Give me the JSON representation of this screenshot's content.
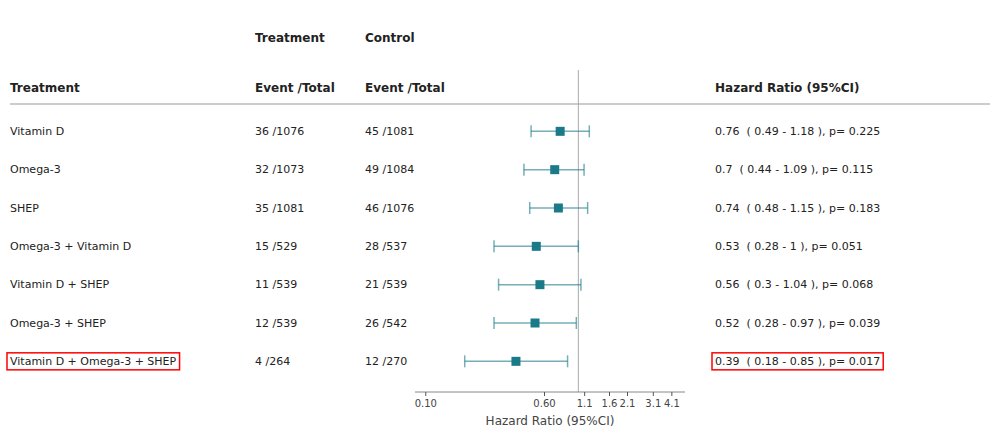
{
  "chart_data": {
    "type": "forest",
    "categories": [
      "Vitamin D",
      "Omega-3",
      "SHEP",
      "Omega-3 + Vitamin D",
      "Vitamin D + SHEP",
      "Omega-3 + SHEP",
      "Vitamin D + Omega-3 + SHEP"
    ],
    "values": [
      0.76,
      0.7,
      0.74,
      0.53,
      0.56,
      0.52,
      0.39
    ],
    "ci_low": [
      0.49,
      0.44,
      0.48,
      0.28,
      0.3,
      0.28,
      0.18
    ],
    "ci_high": [
      1.18,
      1.09,
      1.15,
      1.0,
      1.04,
      0.97,
      0.85
    ],
    "treat_events": [
      "36 /1076",
      "32 /1073",
      "35 /1081",
      "15 /529",
      "11 /539",
      "12 /539",
      "4 /264"
    ],
    "control_events": [
      "45 /1081",
      "49 /1084",
      "46 /1076",
      "28 /537",
      "21 /539",
      "26 /542",
      "12 /270"
    ],
    "hr_text": [
      "0.76  ( 0.49 - 1.18 ), p= 0.225",
      "0.7  ( 0.44 - 1.09 ), p= 0.115",
      "0.74  ( 0.48 - 1.15 ), p= 0.183",
      "0.53  ( 0.28 - 1 ), p= 0.051",
      "0.56  ( 0.3 - 1.04 ), p= 0.068",
      "0.52  ( 0.28 - 0.97 ), p= 0.039",
      "0.39  ( 0.18 - 0.85 ), p= 0.017"
    ],
    "group_headers": [
      "Treatment",
      "Control"
    ],
    "column_headers": [
      "Treatment",
      "Event /Total",
      "Event /Total",
      "Hazard Ratio (95%CI)"
    ],
    "xlabel": "Hazard Ratio (95%CI)",
    "xlim": [
      0.085,
      5.0
    ],
    "xticks": [
      {
        "value": 0.1,
        "label": "0.10"
      },
      {
        "value": 0.6,
        "label": "0.60"
      },
      1.1,
      1.6,
      2.1,
      3.1,
      4.1
    ],
    "log": "x",
    "reference_line": 1,
    "color": "#1a7a8a",
    "grid": false
  }
}
